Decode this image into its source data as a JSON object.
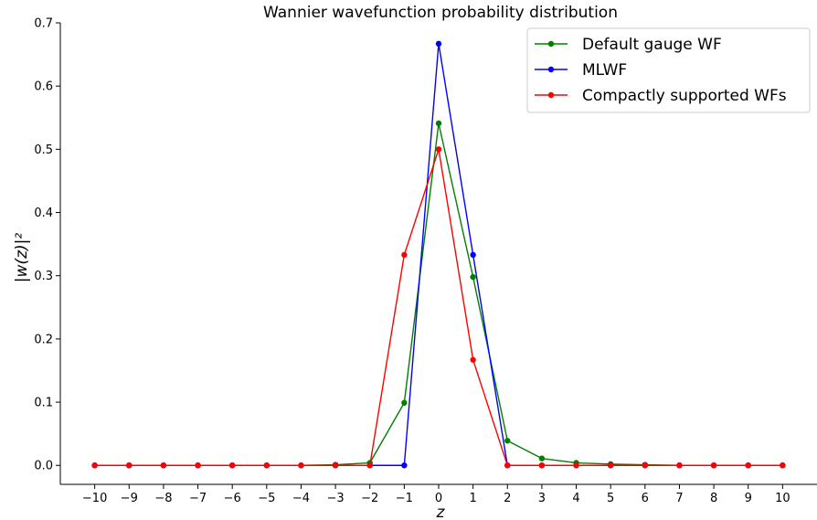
{
  "chart_data": {
    "type": "line",
    "title": "Wannier wavefunction probability distribution",
    "xlabel": "z",
    "ylabel": "|w(z)|²",
    "xlim": [
      -11,
      11
    ],
    "ylim": [
      -0.03,
      0.7
    ],
    "xticks": [
      -10,
      -9,
      -8,
      -7,
      -6,
      -5,
      -4,
      -3,
      -2,
      -1,
      0,
      1,
      2,
      3,
      4,
      5,
      6,
      7,
      8,
      9,
      10
    ],
    "xtick_labels": [
      "−10",
      "−9",
      "−8",
      "−7",
      "−6",
      "−5",
      "−4",
      "−3",
      "−2",
      "−1",
      "0",
      "1",
      "2",
      "3",
      "4",
      "5",
      "6",
      "7",
      "8",
      "9",
      "10"
    ],
    "yticks": [
      0.0,
      0.1,
      0.2,
      0.3,
      0.4,
      0.5,
      0.6,
      0.7
    ],
    "ytick_labels": [
      "0.0",
      "0.1",
      "0.2",
      "0.3",
      "0.4",
      "0.5",
      "0.6",
      "0.7"
    ],
    "legend_position": "top-right",
    "x": [
      -10,
      -9,
      -8,
      -7,
      -6,
      -5,
      -4,
      -3,
      -2,
      -1,
      0,
      1,
      2,
      3,
      4,
      5,
      6,
      7,
      8,
      9,
      10
    ],
    "series": [
      {
        "name": "Default gauge WF",
        "color": "#008000",
        "values": [
          0.0,
          0.0,
          0.0,
          0.0,
          0.0,
          0.0,
          0.0,
          0.001,
          0.004,
          0.099,
          0.541,
          0.298,
          0.039,
          0.011,
          0.004,
          0.002,
          0.001,
          0.0,
          0.0,
          0.0,
          0.0
        ]
      },
      {
        "name": "MLWF",
        "color": "#0000ff",
        "values": [
          0.0,
          0.0,
          0.0,
          0.0,
          0.0,
          0.0,
          0.0,
          0.0,
          0.0,
          0.0,
          0.667,
          0.333,
          0.0,
          0.0,
          0.0,
          0.0,
          0.0,
          0.0,
          0.0,
          0.0,
          0.0
        ]
      },
      {
        "name": "Compactly supported WFs",
        "color": "#ff0000",
        "values": [
          0.0,
          0.0,
          0.0,
          0.0,
          0.0,
          0.0,
          0.0,
          0.0,
          0.0,
          0.333,
          0.5,
          0.167,
          0.0,
          0.0,
          0.0,
          0.0,
          0.0,
          0.0,
          0.0,
          0.0,
          0.0
        ]
      }
    ]
  }
}
